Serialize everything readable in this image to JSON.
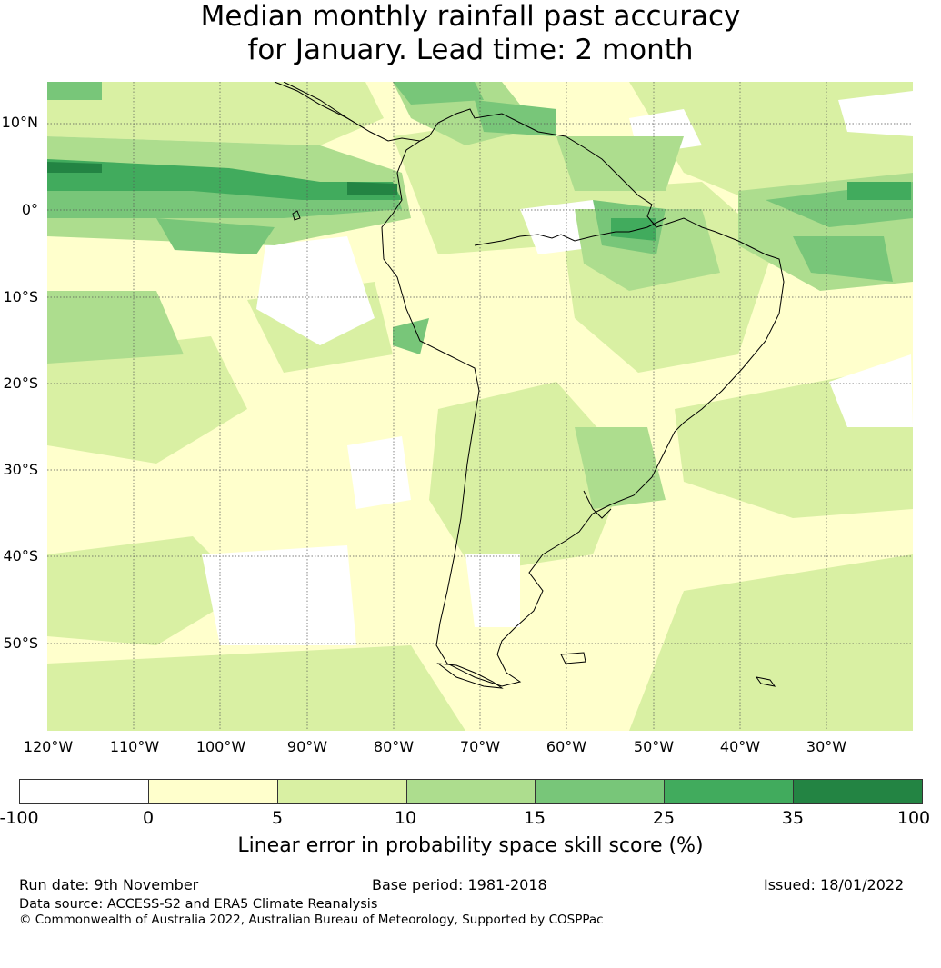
{
  "title": {
    "line1": "Median monthly rainfall past accuracy",
    "line2": "for January. Lead time: 2 month"
  },
  "map": {
    "lat_labels": [
      "10°N",
      "0°",
      "10°S",
      "20°S",
      "30°S",
      "40°S",
      "50°S"
    ],
    "lon_labels": [
      "120°W",
      "110°W",
      "100°W",
      "90°W",
      "80°W",
      "70°W",
      "60°W",
      "50°W",
      "40°W",
      "30°W"
    ],
    "gridlines": true,
    "colors": {
      "c0": "#ffffff",
      "c1": "#ffffcc",
      "c2": "#d9f0a3",
      "c3": "#addd8e",
      "c4": "#78c679",
      "c5": "#41ab5d",
      "c6": "#238443",
      "coast": "#000000"
    }
  },
  "colorbar": {
    "ticks": [
      "-100",
      "0",
      "5",
      "10",
      "15",
      "25",
      "35",
      "100"
    ],
    "colors": [
      "#ffffff",
      "#ffffcc",
      "#d9f0a3",
      "#addd8e",
      "#78c679",
      "#41ab5d",
      "#238443"
    ],
    "label": "Linear error in probability space skill score (%)"
  },
  "footer": {
    "run_date": "Run date: 9th November",
    "base_period": "Base period: 1981-2018",
    "issued": "Issued: 18/01/2022",
    "source": "Data source: ACCESS-S2 and ERA5 Climate Reanalysis",
    "copyright": "© Commonwealth of Australia 2022, Australian Bureau of Meteorology, Supported by COSPPac"
  }
}
